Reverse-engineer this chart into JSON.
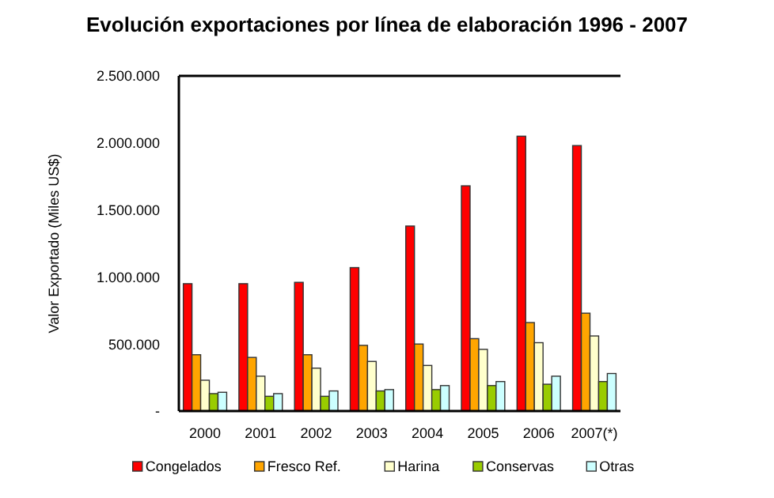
{
  "chart_data": {
    "type": "bar",
    "title": "Evolución exportaciones por línea de elaboración 1996 - 2007",
    "ylabel": "Valor Exportado (Miles US$)",
    "categories": [
      "2000",
      "2001",
      "2002",
      "2003",
      "2004",
      "2005",
      "2006",
      "2007(*)"
    ],
    "series": [
      {
        "name": "Congelados",
        "color": "#ff0000",
        "values": [
          950000,
          950000,
          960000,
          1070000,
          1380000,
          1680000,
          2050000,
          1980000
        ]
      },
      {
        "name": "Fresco Ref.",
        "color": "#ffa500",
        "values": [
          420000,
          400000,
          420000,
          490000,
          500000,
          540000,
          660000,
          730000
        ]
      },
      {
        "name": "Harina",
        "color": "#ffffcc",
        "values": [
          230000,
          260000,
          320000,
          370000,
          340000,
          460000,
          510000,
          560000
        ]
      },
      {
        "name": "Conservas",
        "color": "#99cc00",
        "values": [
          130000,
          110000,
          110000,
          150000,
          160000,
          190000,
          200000,
          220000
        ]
      },
      {
        "name": "Otras",
        "color": "#ccffff",
        "values": [
          140000,
          130000,
          150000,
          160000,
          190000,
          220000,
          260000,
          280000
        ]
      }
    ],
    "ylim": [
      0,
      2500000
    ],
    "yticks": [
      {
        "value": 0,
        "label": "-"
      },
      {
        "value": 500000,
        "label": "500.000"
      },
      {
        "value": 1000000,
        "label": "1.000.000"
      },
      {
        "value": 1500000,
        "label": "1.500.000"
      },
      {
        "value": 2000000,
        "label": "2.000.000"
      },
      {
        "value": 2500000,
        "label": "2.500.000"
      }
    ],
    "grid": false,
    "legend": "bottom"
  }
}
